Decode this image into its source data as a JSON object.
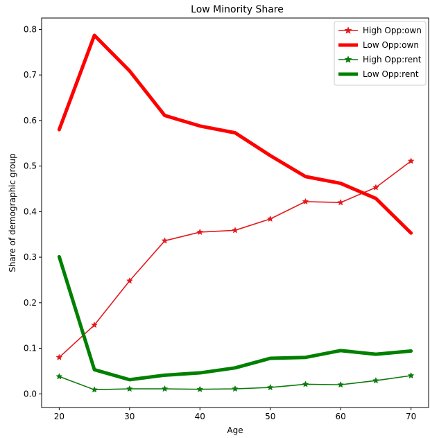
{
  "chart_data": {
    "type": "line",
    "title": "Low Minority Share",
    "xlabel": "Age",
    "ylabel": "Share of demographic group",
    "xlim": [
      17.5,
      72.5
    ],
    "ylim": [
      -0.03,
      0.825
    ],
    "x_ticks": [
      20,
      30,
      40,
      50,
      60,
      70
    ],
    "y_ticks": [
      0.0,
      0.1,
      0.2,
      0.3,
      0.4,
      0.5,
      0.6,
      0.7,
      0.8
    ],
    "grid": false,
    "legend_position": "top-right",
    "x": [
      20,
      25,
      30,
      35,
      40,
      45,
      50,
      55,
      60,
      65,
      70
    ],
    "series": [
      {
        "name": "High Opp:own",
        "color": "#e41a1c",
        "style": "thin-star",
        "values": [
          0.08,
          0.151,
          0.248,
          0.336,
          0.355,
          0.359,
          0.384,
          0.422,
          0.42,
          0.453,
          0.511
        ]
      },
      {
        "name": "Low Opp:own",
        "color": "#ff0000",
        "style": "thick",
        "values": [
          0.58,
          0.787,
          0.709,
          0.611,
          0.588,
          0.573,
          0.523,
          0.477,
          0.462,
          0.429,
          0.353
        ]
      },
      {
        "name": "High Opp:rent",
        "color": "#0a7a0a",
        "style": "thin-star",
        "values": [
          0.038,
          0.009,
          0.011,
          0.011,
          0.01,
          0.011,
          0.014,
          0.021,
          0.02,
          0.029,
          0.04
        ]
      },
      {
        "name": "Low Opp:rent",
        "color": "#008000",
        "style": "thick",
        "values": [
          0.301,
          0.053,
          0.031,
          0.041,
          0.046,
          0.057,
          0.078,
          0.08,
          0.095,
          0.087,
          0.094
        ]
      }
    ]
  }
}
